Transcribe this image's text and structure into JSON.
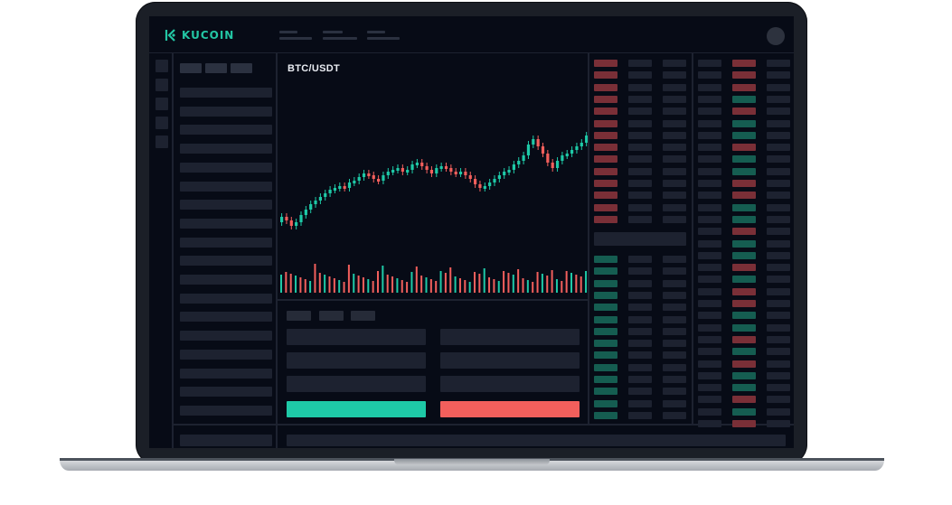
{
  "header": {
    "brand": "KUCOIN",
    "avatar_icon": "user-avatar-icon"
  },
  "chart": {
    "pair": "BTC/USDT"
  },
  "trade_form": {
    "buy_label": "",
    "sell_label": ""
  },
  "colors": {
    "up": "#1ec9a7",
    "down": "#f25f5c",
    "background": "#070b16",
    "panel_line": "#1d2230",
    "brand": "#23c6a4"
  }
}
